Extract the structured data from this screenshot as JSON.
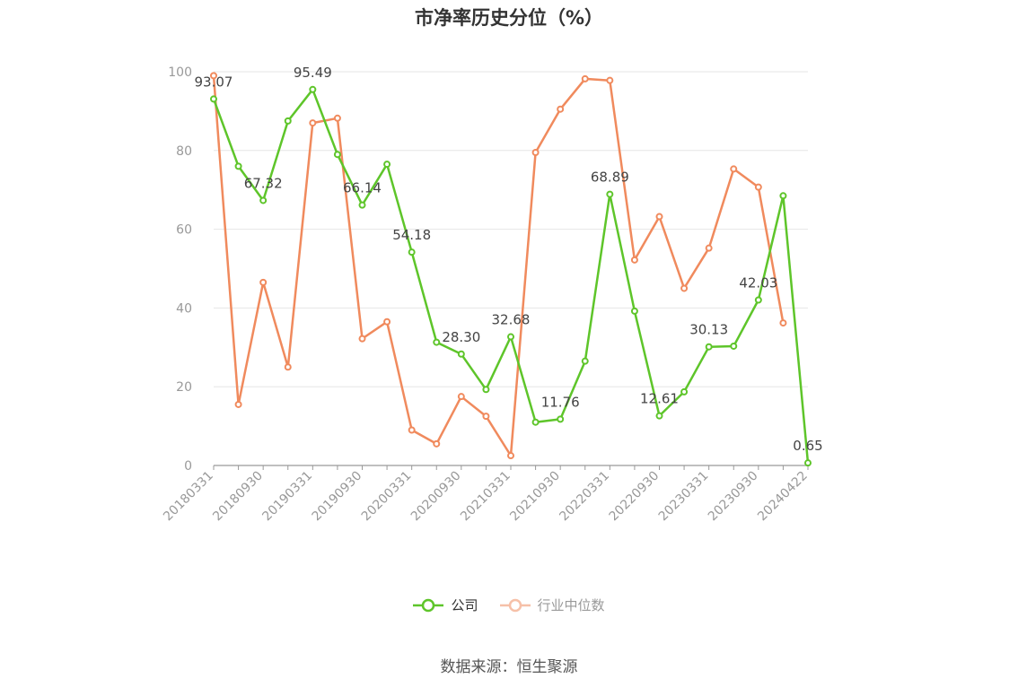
{
  "title": "市净率历史分位（%）",
  "source": "数据来源：恒生聚源",
  "colors": {
    "company": "#5ec52a",
    "industry": "#f08a5d",
    "grid": "#e6e6e6",
    "axis": "#999999",
    "label": "#444444"
  },
  "legend": {
    "company": "公司",
    "industry": "行业中位数"
  },
  "chart_data": {
    "type": "line",
    "x": [
      "20180331",
      "20180630",
      "20180930",
      "20181231",
      "20190331",
      "20190630",
      "20190930",
      "20191231",
      "20200331",
      "20200630",
      "20200930",
      "20201231",
      "20210331",
      "20210630",
      "20210930",
      "20211231",
      "20220331",
      "20220630",
      "20220930",
      "20221231",
      "20230331",
      "20230630",
      "20230930",
      "20231231",
      "20240422"
    ],
    "xtick_labels": [
      "20180331",
      "20180930",
      "20190331",
      "20190930",
      "20200331",
      "20200930",
      "20210331",
      "20210930",
      "20220331",
      "20220930",
      "20230331",
      "20230930",
      "20240422"
    ],
    "ylim": [
      0,
      100
    ],
    "yticks": [
      0,
      20,
      40,
      60,
      80,
      100
    ],
    "grid": true,
    "legend_position": "bottom",
    "series": [
      {
        "name": "公司",
        "key": "company",
        "values": [
          93.07,
          76,
          67.32,
          87.5,
          95.49,
          79,
          66.14,
          76.5,
          54.18,
          31.3,
          28.3,
          19.3,
          32.68,
          11.0,
          11.76,
          26.5,
          68.89,
          39.2,
          12.61,
          18.7,
          30.13,
          30.3,
          42.03,
          68.5,
          0.65
        ],
        "labels": [
          "93.07",
          "",
          "67.32",
          "",
          "95.49",
          "",
          "66.14",
          "",
          "54.18",
          "",
          "28.30",
          "",
          "32.68",
          "",
          "11.76",
          "",
          "68.89",
          "",
          "12.61",
          "",
          "30.13",
          "",
          "42.03",
          "",
          "0.65"
        ]
      },
      {
        "name": "行业中位数",
        "key": "industry",
        "values": [
          99,
          15.5,
          46.5,
          25,
          87,
          88.2,
          32.2,
          36.5,
          9,
          5.5,
          17.5,
          12.5,
          2.5,
          79.5,
          90.5,
          98.2,
          97.8,
          52.2,
          63.2,
          45,
          55.2,
          75.3,
          70.7,
          36.2,
          null
        ]
      }
    ]
  }
}
